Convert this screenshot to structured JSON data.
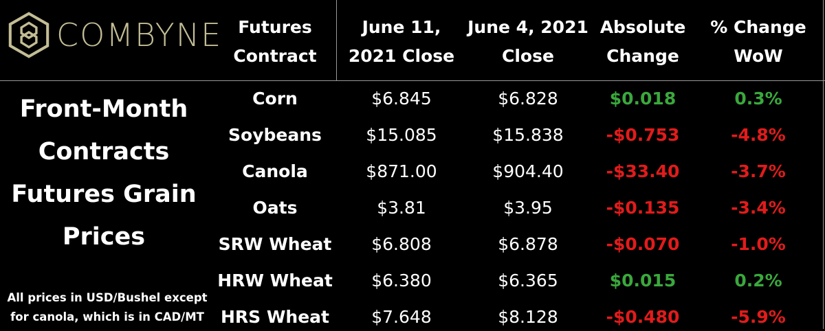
{
  "brand": {
    "name": "COMBYNE",
    "color": "#c3bd95"
  },
  "header": {
    "contract": "Futures\nContract",
    "current_close": "June 11,\n2021 Close",
    "previous_close": "June 4, 2021\nClose",
    "absolute_change": "Absolute\nChange",
    "pct_change": "% Change\nWoW"
  },
  "left_panel": {
    "title": "Front-Month\nContracts\nFutures Grain\nPrices",
    "note": "All prices in USD/Bushel except\nfor canola, which is in CAD/MT"
  },
  "colors": {
    "positive": "#3aa83c",
    "negative": "#e21b1b",
    "text": "#ffffff",
    "background": "#000000"
  },
  "chart_data": {
    "type": "table",
    "columns": [
      "Futures Contract",
      "June 11, 2021 Close",
      "June 4, 2021 Close",
      "Absolute Change",
      "% Change WoW"
    ],
    "rows": [
      {
        "name": "Corn",
        "current": "$6.845",
        "previous": "$6.828",
        "abs_change": "$0.018",
        "pct_change": "0.3%",
        "direction": "up"
      },
      {
        "name": "Soybeans",
        "current": "$15.085",
        "previous": "$15.838",
        "abs_change": "-$0.753",
        "pct_change": "-4.8%",
        "direction": "down"
      },
      {
        "name": "Canola",
        "current": "$871.00",
        "previous": "$904.40",
        "abs_change": "-$33.40",
        "pct_change": "-3.7%",
        "direction": "down"
      },
      {
        "name": "Oats",
        "current": "$3.81",
        "previous": "$3.95",
        "abs_change": "-$0.135",
        "pct_change": "-3.4%",
        "direction": "down"
      },
      {
        "name": "SRW Wheat",
        "current": "$6.808",
        "previous": "$6.878",
        "abs_change": "-$0.070",
        "pct_change": "-1.0%",
        "direction": "down"
      },
      {
        "name": "HRW Wheat",
        "current": "$6.380",
        "previous": "$6.365",
        "abs_change": "$0.015",
        "pct_change": "0.2%",
        "direction": "up"
      },
      {
        "name": "HRS Wheat",
        "current": "$7.648",
        "previous": "$8.128",
        "abs_change": "-$0.480",
        "pct_change": "-5.9%",
        "direction": "down"
      }
    ]
  }
}
